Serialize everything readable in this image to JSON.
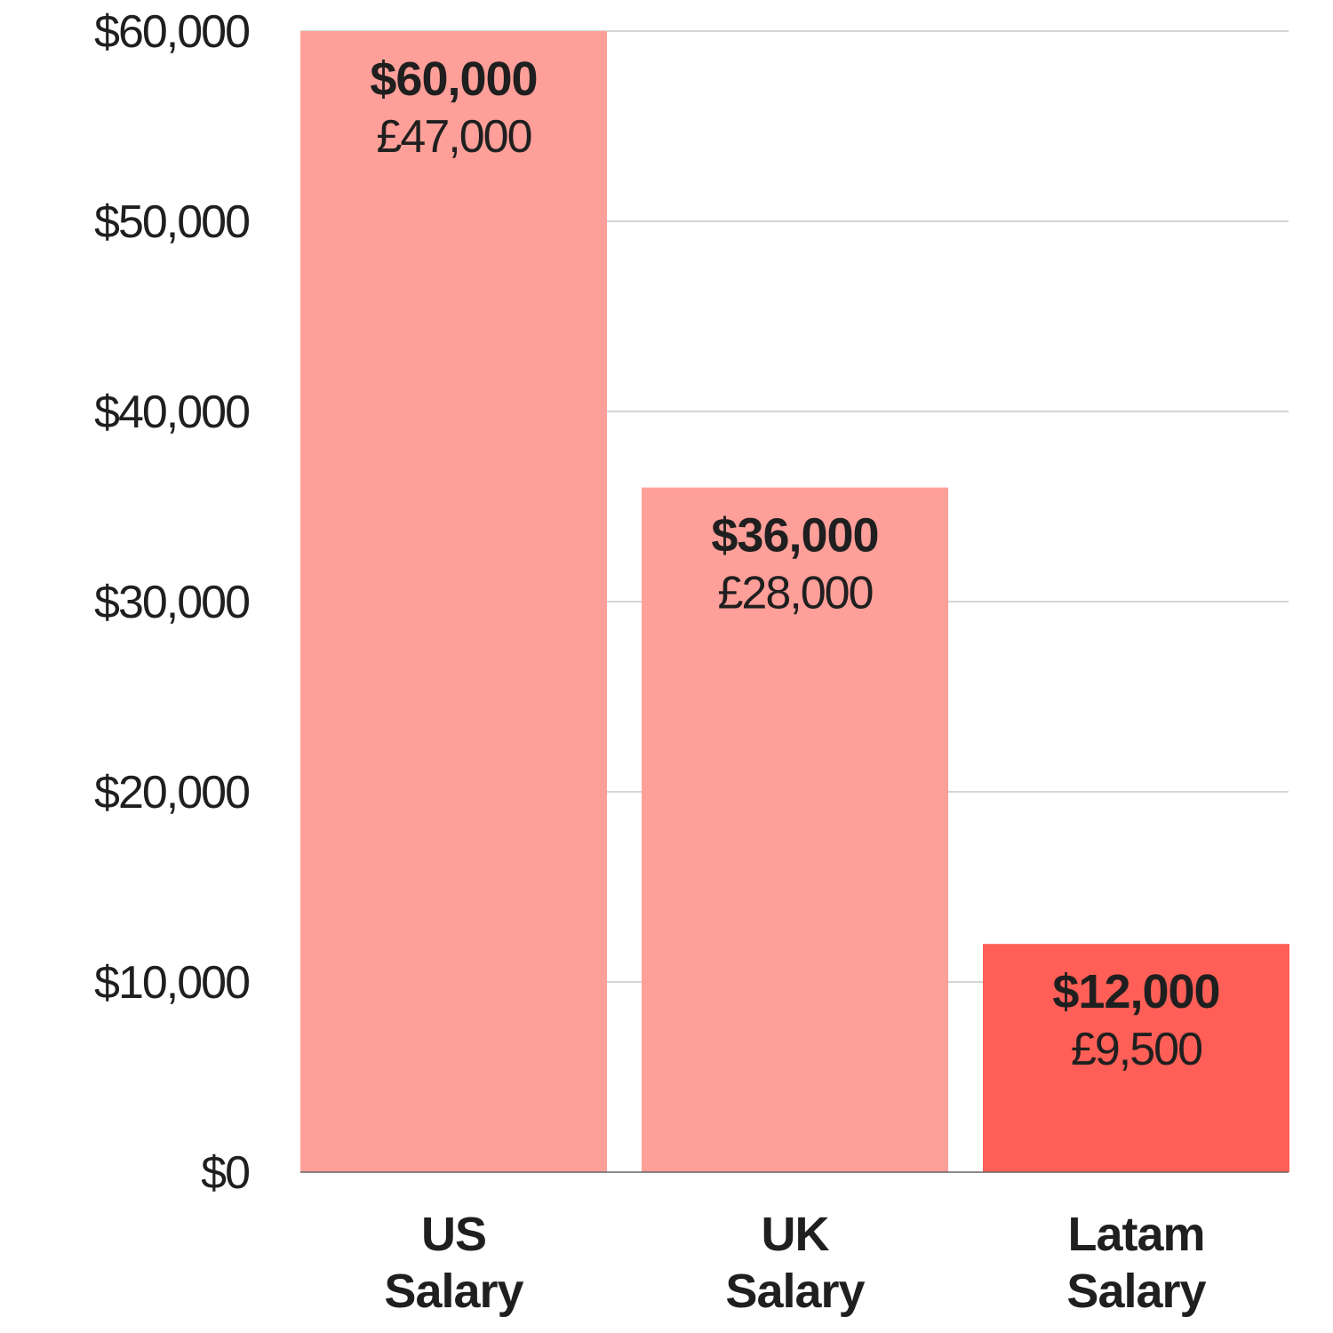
{
  "chart_data": {
    "type": "bar",
    "categories": [
      {
        "line1": "US",
        "line2": "Salary"
      },
      {
        "line1": "UK",
        "line2": "Salary"
      },
      {
        "line1": "Latam",
        "line2": "Salary"
      }
    ],
    "values": [
      60000,
      36000,
      12000
    ],
    "value_labels": [
      "$60,000",
      "$36,000",
      "$12,000"
    ],
    "secondary_labels": [
      "£47,000",
      "£28,000",
      "£9,500"
    ],
    "bar_colors": [
      "#ff9f99",
      "#ff9f99",
      "#ff5f56"
    ],
    "ylim": [
      0,
      60000
    ],
    "yticks": [
      {
        "value": 0,
        "label": "$0"
      },
      {
        "value": 10000,
        "label": "$10,000"
      },
      {
        "value": 20000,
        "label": "$20,000"
      },
      {
        "value": 30000,
        "label": "$30,000"
      },
      {
        "value": 40000,
        "label": "$40,000"
      },
      {
        "value": 50000,
        "label": "$50,000"
      },
      {
        "value": 60000,
        "label": "$60,000"
      }
    ],
    "grid": true,
    "legend": "none",
    "title": "",
    "xlabel": "",
    "ylabel": ""
  }
}
